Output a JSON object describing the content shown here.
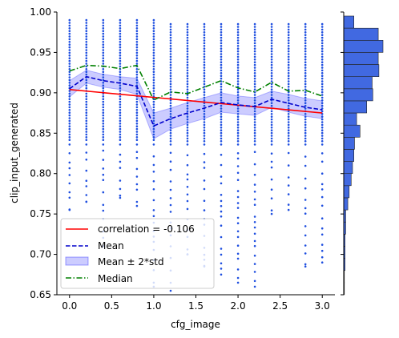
{
  "chart_data": {
    "type": "scatter",
    "xlabel": "cfg_image",
    "ylabel": "clip_input_generated",
    "xlim": [
      -0.15,
      3.15
    ],
    "ylim": [
      0.65,
      1.0
    ],
    "x_ticks": [
      0.0,
      0.5,
      1.0,
      1.5,
      2.0,
      2.5,
      3.0
    ],
    "x_tick_labels": [
      "0.0",
      "0.5",
      "1.0",
      "1.5",
      "2.0",
      "2.5",
      "3.0"
    ],
    "y_ticks": [
      0.65,
      0.7,
      0.75,
      0.8,
      0.85,
      0.9,
      0.95,
      1.0
    ],
    "y_tick_labels": [
      "0.65",
      "0.70",
      "0.75",
      "0.80",
      "0.85",
      "0.90",
      "0.95",
      "1.00"
    ],
    "x": [
      0.0,
      0.2,
      0.4,
      0.6,
      0.8,
      1.0,
      1.2,
      1.4,
      1.6,
      1.8,
      2.0,
      2.2,
      2.4,
      2.6,
      2.8,
      3.0
    ],
    "scatter_columns": [
      {
        "x": 0.0,
        "ymin": 0.755,
        "ymax": 0.99
      },
      {
        "x": 0.2,
        "ymin": 0.765,
        "ymax": 0.99
      },
      {
        "x": 0.4,
        "ymin": 0.71,
        "ymax": 0.99
      },
      {
        "x": 0.6,
        "ymin": 0.77,
        "ymax": 0.99
      },
      {
        "x": 0.8,
        "ymin": 0.76,
        "ymax": 0.99
      },
      {
        "x": 1.0,
        "ymin": 0.66,
        "ymax": 0.99
      },
      {
        "x": 1.2,
        "ymin": 0.655,
        "ymax": 0.985
      },
      {
        "x": 1.4,
        "ymin": 0.7,
        "ymax": 0.985
      },
      {
        "x": 1.6,
        "ymin": 0.685,
        "ymax": 0.985
      },
      {
        "x": 1.8,
        "ymin": 0.675,
        "ymax": 0.985
      },
      {
        "x": 2.0,
        "ymin": 0.665,
        "ymax": 0.985
      },
      {
        "x": 2.2,
        "ymin": 0.66,
        "ymax": 0.985
      },
      {
        "x": 2.4,
        "ymin": 0.75,
        "ymax": 0.985
      },
      {
        "x": 2.6,
        "ymin": 0.755,
        "ymax": 0.985
      },
      {
        "x": 2.8,
        "ymin": 0.685,
        "ymax": 0.985
      },
      {
        "x": 3.0,
        "ymin": 0.69,
        "ymax": 0.985
      }
    ],
    "series": [
      {
        "name": "correlation = -0.106",
        "style": "solid",
        "color": "#ff0000",
        "x": [
          0.0,
          3.0
        ],
        "values": [
          0.904,
          0.875
        ]
      },
      {
        "name": "Mean",
        "style": "dashed",
        "color": "#0000cc",
        "values": [
          0.905,
          0.92,
          0.915,
          0.912,
          0.908,
          0.859,
          0.868,
          0.875,
          0.881,
          0.888,
          0.885,
          0.883,
          0.892,
          0.887,
          0.882,
          0.879
        ]
      },
      {
        "name": "Mean ± 2*std",
        "style": "band",
        "color": "#0000ff",
        "lower": [
          0.895,
          0.912,
          0.907,
          0.904,
          0.898,
          0.843,
          0.855,
          0.862,
          0.868,
          0.876,
          0.874,
          0.872,
          0.882,
          0.876,
          0.871,
          0.868
        ],
        "upper": [
          0.915,
          0.928,
          0.923,
          0.92,
          0.918,
          0.875,
          0.881,
          0.888,
          0.894,
          0.9,
          0.896,
          0.894,
          0.902,
          0.898,
          0.893,
          0.89
        ]
      },
      {
        "name": "Median",
        "style": "dashdot",
        "color": "#008000",
        "values": [
          0.927,
          0.934,
          0.933,
          0.93,
          0.934,
          0.891,
          0.901,
          0.899,
          0.907,
          0.915,
          0.906,
          0.901,
          0.913,
          0.902,
          0.903,
          0.896
        ]
      }
    ],
    "marginal_histogram": {
      "orientation": "horizontal",
      "color": "#4169e1",
      "bins": [
        {
          "y0": 0.65,
          "y1": 0.665,
          "count": 1
        },
        {
          "y0": 0.665,
          "y1": 0.68,
          "count": 1
        },
        {
          "y0": 0.68,
          "y1": 0.695,
          "count": 2
        },
        {
          "y0": 0.695,
          "y1": 0.71,
          "count": 2
        },
        {
          "y0": 0.71,
          "y1": 0.725,
          "count": 2
        },
        {
          "y0": 0.725,
          "y1": 0.74,
          "count": 3
        },
        {
          "y0": 0.74,
          "y1": 0.755,
          "count": 3
        },
        {
          "y0": 0.755,
          "y1": 0.77,
          "count": 6
        },
        {
          "y0": 0.77,
          "y1": 0.785,
          "count": 8
        },
        {
          "y0": 0.785,
          "y1": 0.8,
          "count": 11
        },
        {
          "y0": 0.8,
          "y1": 0.815,
          "count": 13
        },
        {
          "y0": 0.815,
          "y1": 0.83,
          "count": 15
        },
        {
          "y0": 0.83,
          "y1": 0.845,
          "count": 16
        },
        {
          "y0": 0.845,
          "y1": 0.86,
          "count": 24
        },
        {
          "y0": 0.86,
          "y1": 0.875,
          "count": 19
        },
        {
          "y0": 0.875,
          "y1": 0.89,
          "count": 34
        },
        {
          "y0": 0.89,
          "y1": 0.905,
          "count": 43
        },
        {
          "y0": 0.905,
          "y1": 0.92,
          "count": 42
        },
        {
          "y0": 0.92,
          "y1": 0.935,
          "count": 52
        },
        {
          "y0": 0.935,
          "y1": 0.95,
          "count": 51
        },
        {
          "y0": 0.95,
          "y1": 0.965,
          "count": 58
        },
        {
          "y0": 0.965,
          "y1": 0.98,
          "count": 51
        },
        {
          "y0": 0.98,
          "y1": 0.995,
          "count": 15
        }
      ]
    },
    "legend": {
      "placement": "lower-left",
      "entries": [
        "correlation = -0.106",
        "Mean",
        "Mean ± 2*std",
        "Median"
      ]
    },
    "grid": false
  }
}
